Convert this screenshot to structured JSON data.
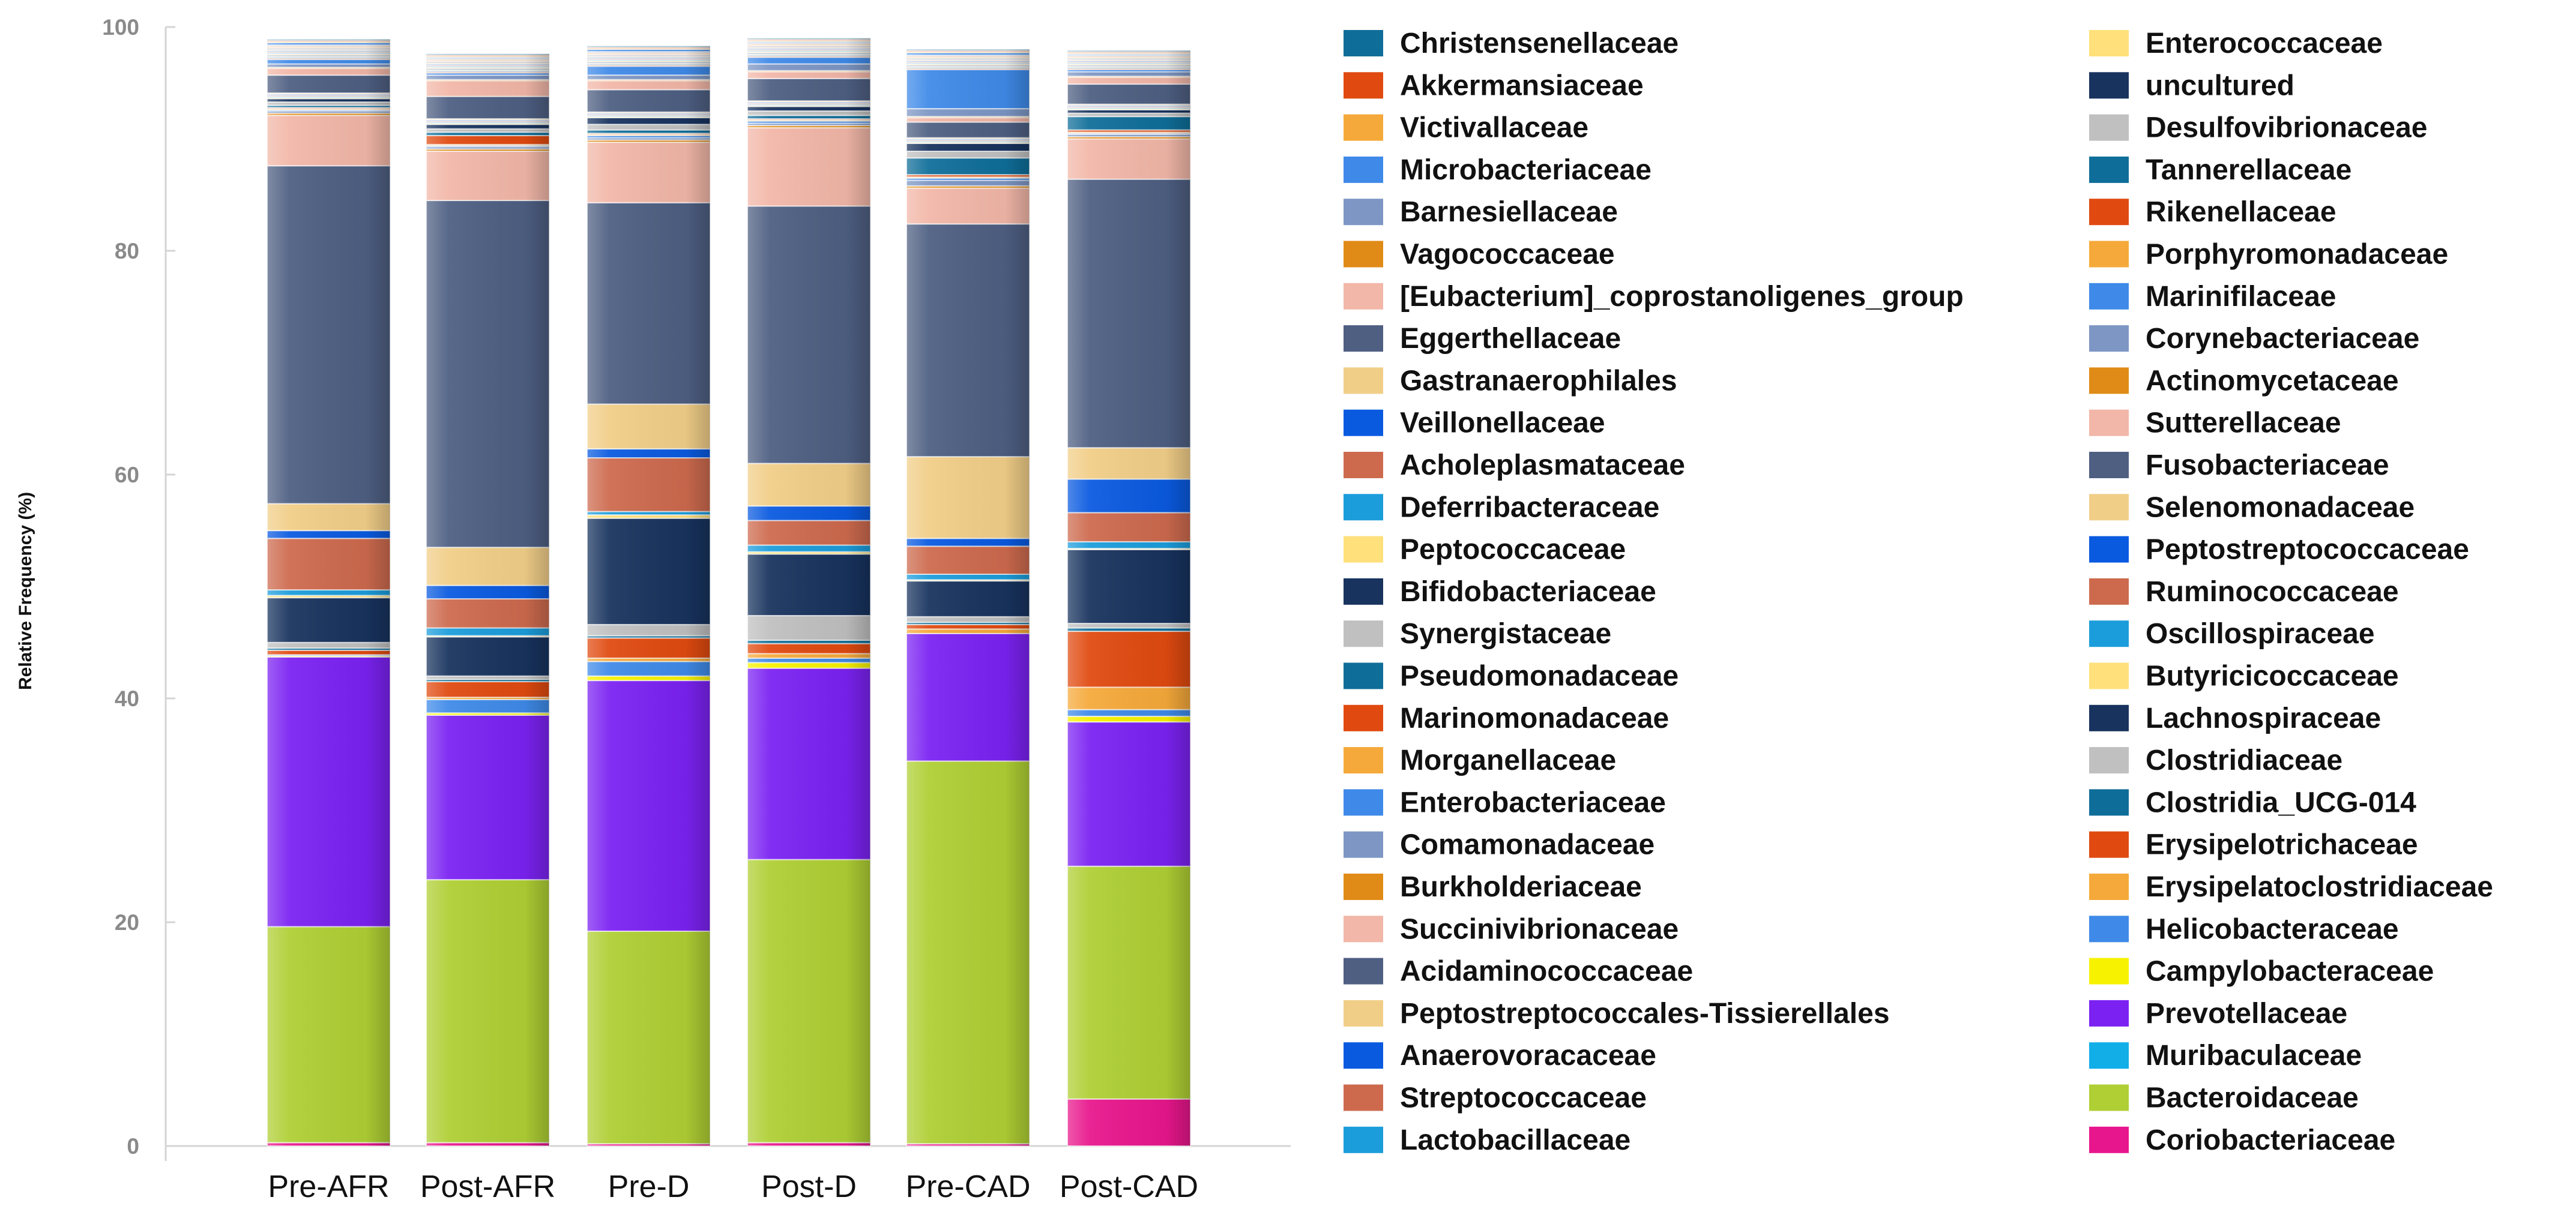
{
  "chart_data": {
    "type": "bar",
    "stacked": true,
    "title": "",
    "xlabel": "",
    "ylabel": "Relative Frequency (%)",
    "ylim": [
      0,
      100
    ],
    "yticks": [
      0,
      20,
      40,
      60,
      80,
      100
    ],
    "categories": [
      "Pre-AFR",
      "Post-AFR",
      "Pre-D",
      "Post-D",
      "Pre-CAD",
      "Post-CAD"
    ],
    "series": [
      {
        "name": "Coriobacteriaceae",
        "color": "#e8168c",
        "values": [
          0.3,
          0.3,
          0.2,
          0.3,
          0.2,
          4.2
        ]
      },
      {
        "name": "Bacteroidaceae",
        "color": "#afcf34",
        "values": [
          19.3,
          23.5,
          19.0,
          25.3,
          34.2,
          20.8
        ]
      },
      {
        "name": "Muribaculaceae",
        "color": "#12aee8",
        "values": [
          0.0,
          0.0,
          0.0,
          0.0,
          0.0,
          0.0
        ]
      },
      {
        "name": "Prevotellaceae",
        "color": "#7b22f2",
        "values": [
          24.1,
          14.7,
          22.4,
          17.1,
          11.4,
          12.9
        ]
      },
      {
        "name": "Campylobacteraceae",
        "color": "#f7f200",
        "values": [
          0.1,
          0.2,
          0.4,
          0.5,
          0.0,
          0.5
        ]
      },
      {
        "name": "Helicobacteraceae",
        "color": "#3f8ae8",
        "values": [
          0.1,
          1.2,
          1.3,
          0.4,
          0.0,
          0.6
        ]
      },
      {
        "name": "Erysipelatoclostridiaceae",
        "color": "#f5a93a",
        "values": [
          0.0,
          0.2,
          0.3,
          0.4,
          0.4,
          2.0
        ]
      },
      {
        "name": "Erysipelotrichaceae",
        "color": "#e04a10",
        "values": [
          0.4,
          1.4,
          1.8,
          0.9,
          0.4,
          5.0
        ]
      },
      {
        "name": "Clostridia_UCG-014",
        "color": "#0f6e99",
        "values": [
          0.2,
          0.2,
          0.2,
          0.3,
          0.2,
          0.3
        ]
      },
      {
        "name": "Clostridiaceae",
        "color": "#c0c0c0",
        "values": [
          0.5,
          0.3,
          1.0,
          2.2,
          0.5,
          0.4
        ]
      },
      {
        "name": "Lachnospiraceae",
        "color": "#18335e",
        "values": [
          4.0,
          3.5,
          9.5,
          5.5,
          3.2,
          6.6
        ]
      },
      {
        "name": "Butyricicoccaceae",
        "color": "#ffe07a",
        "values": [
          0.2,
          0.1,
          0.3,
          0.2,
          0.1,
          0.1
        ]
      },
      {
        "name": "Oscillospiraceae",
        "color": "#1c9ddb",
        "values": [
          0.5,
          0.7,
          0.3,
          0.6,
          0.5,
          0.6
        ]
      },
      {
        "name": "Ruminococcaceae",
        "color": "#cd6a4e",
        "values": [
          4.6,
          2.6,
          4.8,
          2.2,
          2.5,
          2.6
        ]
      },
      {
        "name": "Peptostreptococcaceae",
        "color": "#0a5ae0",
        "values": [
          0.7,
          1.2,
          0.8,
          1.3,
          0.7,
          3.0
        ]
      },
      {
        "name": "Selenomonadaceae",
        "color": "#f1ce88",
        "values": [
          2.4,
          3.4,
          4.0,
          3.8,
          7.3,
          2.8
        ]
      },
      {
        "name": "Fusobacteriaceae",
        "color": "#4e5f82",
        "values": [
          30.2,
          31.0,
          18.0,
          23.0,
          20.8,
          24.0
        ]
      },
      {
        "name": "Sutterellaceae",
        "color": "#f2b7a8",
        "values": [
          4.5,
          4.4,
          5.4,
          7.0,
          3.2,
          3.6
        ]
      },
      {
        "name": "Actinomycetaceae",
        "color": "#e08b17",
        "values": [
          0.2,
          0.2,
          0.2,
          0.2,
          0.2,
          0.2
        ]
      },
      {
        "name": "Corynebacteriaceae",
        "color": "#7d96c4",
        "values": [
          0.2,
          0.2,
          0.2,
          0.2,
          0.5,
          0.2
        ]
      },
      {
        "name": "Marinifilaceae",
        "color": "#3f8ae8",
        "values": [
          0.1,
          0.1,
          0.2,
          0.2,
          0.2,
          0.1
        ]
      },
      {
        "name": "Porphyromonadaceae",
        "color": "#f5a93a",
        "values": [
          0.1,
          0.1,
          0.1,
          0.1,
          0.1,
          0.1
        ]
      },
      {
        "name": "Rikenellaceae",
        "color": "#e04a10",
        "values": [
          0.1,
          0.8,
          0.1,
          0.1,
          0.2,
          0.2
        ]
      },
      {
        "name": "Tannerellaceae",
        "color": "#0f6e99",
        "values": [
          0.2,
          0.3,
          0.3,
          0.3,
          1.5,
          1.2
        ]
      },
      {
        "name": "Desulfovibrionaceae",
        "color": "#c0c0c0",
        "values": [
          0.3,
          0.3,
          0.5,
          0.4,
          0.6,
          0.3
        ]
      },
      {
        "name": "uncultured",
        "color": "#18335e",
        "values": [
          0.3,
          0.4,
          0.6,
          0.4,
          0.7,
          0.3
        ]
      },
      {
        "name": "Enterococcaceae",
        "color": "#ffe07a",
        "values": [
          0.1,
          0.1,
          0.1,
          0.1,
          0.1,
          0.1
        ]
      },
      {
        "name": "Lactobacillaceae",
        "color": "#1c9ddb",
        "values": [
          0.1,
          0.1,
          0.1,
          0.1,
          0.1,
          0.1
        ]
      },
      {
        "name": "Streptococcaceae",
        "color": "#cd6a4e",
        "values": [
          0.1,
          0.1,
          0.1,
          0.1,
          0.1,
          0.1
        ]
      },
      {
        "name": "Anaerovoracaceae",
        "color": "#0a5ae0",
        "values": [
          0.1,
          0.1,
          0.1,
          0.1,
          0.1,
          0.1
        ]
      },
      {
        "name": "Peptostreptococcales-Tissierellales",
        "color": "#f1ce88",
        "values": [
          0.1,
          0.1,
          0.1,
          0.1,
          0.1,
          0.1
        ]
      },
      {
        "name": "Acidaminococcaceae",
        "color": "#4e5f82",
        "values": [
          1.6,
          2.0,
          2.0,
          2.0,
          1.4,
          1.8
        ]
      },
      {
        "name": "Succinivibrionaceae",
        "color": "#f2b7a8",
        "values": [
          0.6,
          1.4,
          0.8,
          0.6,
          0.4,
          0.6
        ]
      },
      {
        "name": "Burkholderiaceae",
        "color": "#e08b17",
        "values": [
          0.1,
          0.1,
          0.1,
          0.1,
          0.1,
          0.1
        ]
      },
      {
        "name": "Comamonadaceae",
        "color": "#7d96c4",
        "values": [
          0.3,
          0.4,
          0.4,
          0.6,
          0.7,
          0.4
        ]
      },
      {
        "name": "Enterobacteriaceae",
        "color": "#3f8ae8",
        "values": [
          0.4,
          0.2,
          0.8,
          0.6,
          3.5,
          0.2
        ]
      },
      {
        "name": "Morganellaceae",
        "color": "#f5a93a",
        "values": [
          0.0,
          0.0,
          0.0,
          0.0,
          0.0,
          0.0
        ]
      },
      {
        "name": "Marinomonadaceae",
        "color": "#e04a10",
        "values": [
          0.1,
          0.1,
          0.1,
          0.1,
          0.1,
          0.1
        ]
      },
      {
        "name": "Pseudomonadaceae",
        "color": "#0f6e99",
        "values": [
          0.1,
          0.1,
          0.1,
          0.1,
          0.1,
          0.1
        ]
      },
      {
        "name": "Synergistaceae",
        "color": "#c0c0c0",
        "values": [
          0.1,
          0.1,
          0.1,
          0.1,
          0.1,
          0.1
        ]
      },
      {
        "name": "Bifidobacteriaceae",
        "color": "#18335e",
        "values": [
          0.1,
          0.1,
          0.1,
          0.1,
          0.1,
          0.1
        ]
      },
      {
        "name": "Peptococcaceae",
        "color": "#ffe07a",
        "values": [
          0.1,
          0.1,
          0.1,
          0.1,
          0.1,
          0.1
        ]
      },
      {
        "name": "Deferribacteraceae",
        "color": "#1c9ddb",
        "values": [
          0.1,
          0.1,
          0.1,
          0.1,
          0.1,
          0.1
        ]
      },
      {
        "name": "Acholeplasmataceae",
        "color": "#cd6a4e",
        "values": [
          0.1,
          0.1,
          0.1,
          0.1,
          0.1,
          0.1
        ]
      },
      {
        "name": "Veillonellaceae",
        "color": "#0a5ae0",
        "values": [
          0.1,
          0.1,
          0.1,
          0.1,
          0.1,
          0.1
        ]
      },
      {
        "name": "Gastranaerophilales",
        "color": "#f1ce88",
        "values": [
          0.1,
          0.1,
          0.1,
          0.1,
          0.1,
          0.1
        ]
      },
      {
        "name": "Eggerthellaceae",
        "color": "#4e5f82",
        "values": [
          0.1,
          0.1,
          0.1,
          0.1,
          0.1,
          0.1
        ]
      },
      {
        "name": "[Eubacterium]_coprostanoligenes_group",
        "color": "#f2b7a8",
        "values": [
          0.1,
          0.1,
          0.1,
          0.1,
          0.1,
          0.1
        ]
      },
      {
        "name": "Vagococcaceae",
        "color": "#e08b17",
        "values": [
          0.1,
          0.1,
          0.1,
          0.1,
          0.1,
          0.1
        ]
      },
      {
        "name": "Barnesiellaceae",
        "color": "#7d96c4",
        "values": [
          0.1,
          0.1,
          0.1,
          0.1,
          0.1,
          0.1
        ]
      },
      {
        "name": "Microbacteriaceae",
        "color": "#3f8ae8",
        "values": [
          0.2,
          0.1,
          0.2,
          0.1,
          0.2,
          0.1
        ]
      },
      {
        "name": "Victivallaceae",
        "color": "#f5a93a",
        "values": [
          0.1,
          0.1,
          0.1,
          0.1,
          0.1,
          0.1
        ]
      },
      {
        "name": "Akkermansiaceae",
        "color": "#e04a10",
        "values": [
          0.1,
          0.1,
          0.1,
          0.1,
          0.1,
          0.1
        ]
      },
      {
        "name": "Christensenellaceae",
        "color": "#0f6e99",
        "values": [
          0.1,
          0.1,
          0.1,
          0.1,
          0.1,
          0.1
        ]
      }
    ],
    "legend": {
      "columns": [
        [
          "Christensenellaceae",
          "Akkermansiaceae",
          "Victivallaceae",
          "Microbacteriaceae",
          "Barnesiellaceae",
          "Vagococcaceae",
          "[Eubacterium]_coprostanoligenes_group",
          "Eggerthellaceae",
          "Gastranaerophilales",
          "Veillonellaceae",
          "Acholeplasmataceae",
          "Deferribacteraceae",
          "Peptococcaceae",
          "Bifidobacteriaceae",
          "Synergistaceae",
          "Pseudomonadaceae",
          "Marinomonadaceae",
          "Morganellaceae",
          "Enterobacteriaceae",
          "Comamonadaceae",
          "Burkholderiaceae",
          "Succinivibrionaceae",
          "Acidaminococcaceae",
          "Peptostreptococcales-Tissierellales",
          "Anaerovoracaceae",
          "Streptococcaceae",
          "Lactobacillaceae"
        ],
        [
          "Enterococcaceae",
          "uncultured",
          "Desulfovibrionaceae",
          "Tannerellaceae",
          "Rikenellaceae",
          "Porphyromonadaceae",
          "Marinifilaceae",
          "Corynebacteriaceae",
          "Actinomycetaceae",
          "Sutterellaceae",
          "Fusobacteriaceae",
          "Selenomonadaceae",
          "Peptostreptococcaceae",
          "Ruminococcaceae",
          "Oscillospiraceae",
          "Butyricicoccaceae",
          "Lachnospiraceae",
          "Clostridiaceae",
          "Clostridia_UCG-014",
          "Erysipelotrichaceae",
          "Erysipelatoclostridiaceae",
          "Helicobacteraceae",
          "Campylobacteraceae",
          "Prevotellaceae",
          "Muribaculaceae",
          "Bacteroidaceae",
          "Coriobacteriaceae"
        ]
      ],
      "position": "right"
    }
  }
}
